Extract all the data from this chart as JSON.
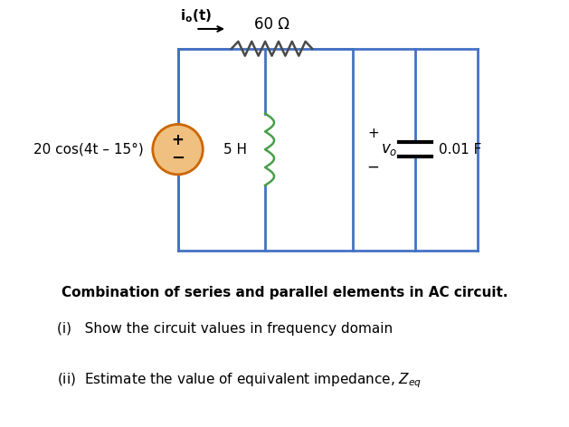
{
  "bg_color": "#ffffff",
  "circuit_color": "#4472c4",
  "resistor_color": "#4a4a4a",
  "inductor_color": "#4a9e4a",
  "source_color": "#cc6600",
  "arrow_color": "#4a4a4a",
  "title_text": "Combination of series and parallel elements in AC circuit.",
  "q1_text": "(i)   Show the circuit values in frequency domain",
  "q2_text": "(ii)  Estimate the value of equivalent impedance, Z",
  "q2_sub": "eq",
  "io_label": "i",
  "io_sub": "o",
  "io_suffix": "(t)",
  "resistor_label": "60 Ω",
  "inductor_label": "5 H",
  "capacitor_label": "0.01 F",
  "source_label": "20 cos(4t – 15°)",
  "vo_label": "v",
  "vo_sub": "o",
  "plus_label": "+",
  "minus_label": "–",
  "figsize": [
    6.29,
    4.72
  ],
  "dpi": 100
}
